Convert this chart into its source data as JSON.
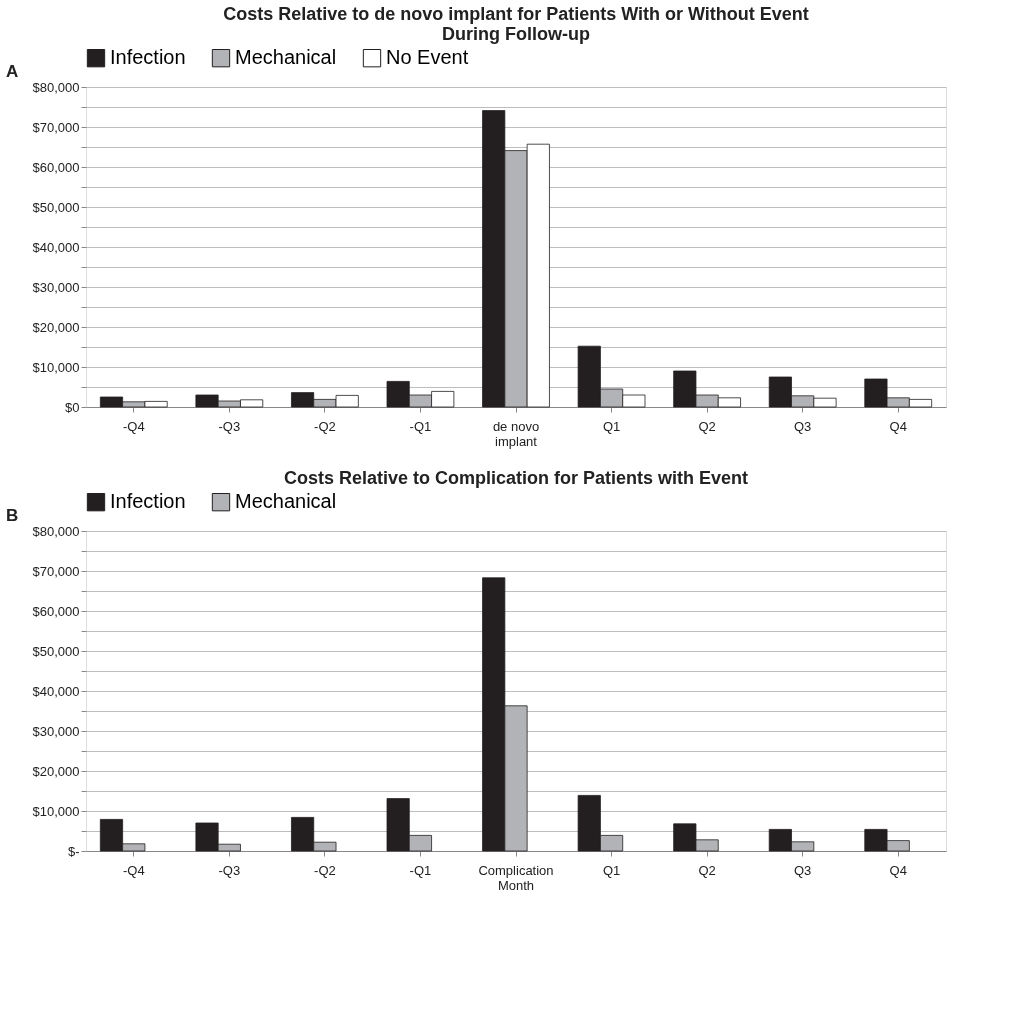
{
  "chart_data": [
    {
      "type": "bar",
      "title": "Costs Relative to de novo implant for Patients With or Without Event During Follow-up",
      "annotations": [
        "A"
      ],
      "categories": [
        "-Q4",
        "-Q3",
        "-Q2",
        "-Q1",
        "de novo implant",
        "Q1",
        "Q2",
        "Q3",
        "Q4"
      ],
      "series": [
        {
          "name": "Infection",
          "color": "#231f20",
          "values": [
            2500,
            3000,
            3600,
            6400,
            74100,
            15200,
            9000,
            7500,
            7000
          ]
        },
        {
          "name": "Mechanical",
          "color": "#b1b3b6",
          "values": [
            1300,
            1500,
            1900,
            3000,
            64100,
            4500,
            3000,
            2800,
            2300
          ]
        },
        {
          "name": "No Event",
          "color": "#ffffff",
          "values": [
            1400,
            1800,
            2900,
            3900,
            65700,
            3000,
            2300,
            2200,
            1900
          ]
        }
      ],
      "ylim": [
        0,
        80000
      ],
      "yticks": [
        {
          "value": 0,
          "label": "$0"
        },
        {
          "value": 5000,
          "label": null
        },
        {
          "value": 10000,
          "label": "$10,000"
        },
        {
          "value": 15000,
          "label": null
        },
        {
          "value": 20000,
          "label": "$20,000"
        },
        {
          "value": 25000,
          "label": null
        },
        {
          "value": 30000,
          "label": "$30,000"
        },
        {
          "value": 35000,
          "label": null
        },
        {
          "value": 40000,
          "label": "$40,000"
        },
        {
          "value": 45000,
          "label": null
        },
        {
          "value": 50000,
          "label": "$50,000"
        },
        {
          "value": 55000,
          "label": null
        },
        {
          "value": 60000,
          "label": "$60,000"
        },
        {
          "value": 65000,
          "label": null
        },
        {
          "value": 70000,
          "label": "$70,000"
        },
        {
          "value": 75000,
          "label": null
        },
        {
          "value": 80000,
          "label": "$80,000"
        }
      ],
      "grid": "y",
      "legend": "top"
    },
    {
      "type": "bar",
      "title": "Costs Relative to Complication for Patients with Event",
      "annotations": [
        "B"
      ],
      "categories": [
        "-Q4",
        "-Q3",
        "-Q2",
        "-Q1",
        "Complication Month",
        "Q1",
        "Q2",
        "Q3",
        "Q4"
      ],
      "series": [
        {
          "name": "Infection",
          "color": "#231f20",
          "values": [
            7900,
            7000,
            8400,
            13100,
            68300,
            13900,
            6800,
            5400,
            5400
          ]
        },
        {
          "name": "Mechanical",
          "color": "#b1b3b6",
          "values": [
            1800,
            1700,
            2200,
            3900,
            36300,
            3900,
            2800,
            2300,
            2600
          ]
        }
      ],
      "ylim": [
        0,
        80000
      ],
      "yticks": [
        {
          "value": 0,
          "label": "$-"
        },
        {
          "value": 5000,
          "label": null
        },
        {
          "value": 10000,
          "label": "$10,000"
        },
        {
          "value": 15000,
          "label": null
        },
        {
          "value": 20000,
          "label": "$20,000"
        },
        {
          "value": 25000,
          "label": null
        },
        {
          "value": 30000,
          "label": "$30,000"
        },
        {
          "value": 35000,
          "label": null
        },
        {
          "value": 40000,
          "label": "$40,000"
        },
        {
          "value": 45000,
          "label": null
        },
        {
          "value": 50000,
          "label": "$50,000"
        },
        {
          "value": 55000,
          "label": null
        },
        {
          "value": 60000,
          "label": "$60,000"
        },
        {
          "value": 65000,
          "label": null
        },
        {
          "value": 70000,
          "label": "$70,000"
        },
        {
          "value": 75000,
          "label": null
        },
        {
          "value": 80000,
          "label": "$80,000"
        }
      ],
      "grid": "y",
      "legend": "top"
    }
  ]
}
